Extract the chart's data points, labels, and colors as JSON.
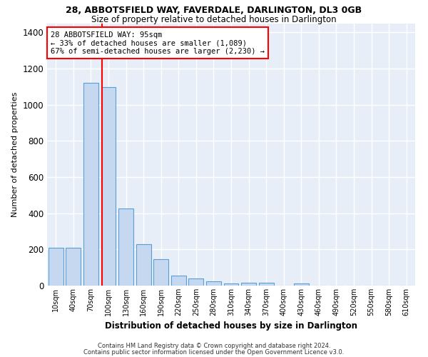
{
  "title1": "28, ABBOTSFIELD WAY, FAVERDALE, DARLINGTON, DL3 0GB",
  "title2": "Size of property relative to detached houses in Darlington",
  "xlabel": "Distribution of detached houses by size in Darlington",
  "ylabel": "Number of detached properties",
  "footnote1": "Contains HM Land Registry data © Crown copyright and database right 2024.",
  "footnote2": "Contains public sector information licensed under the Open Government Licence v3.0.",
  "bar_color": "#c5d8f0",
  "bar_edge_color": "#5a9fd4",
  "annotation_box_text": "28 ABBOTSFIELD WAY: 95sqm\n← 33% of detached houses are smaller (1,089)\n67% of semi-detached houses are larger (2,230) →",
  "vline_color": "#ff0000",
  "categories": [
    "10sqm",
    "40sqm",
    "70sqm",
    "100sqm",
    "130sqm",
    "160sqm",
    "190sqm",
    "220sqm",
    "250sqm",
    "280sqm",
    "310sqm",
    "340sqm",
    "370sqm",
    "400sqm",
    "430sqm",
    "460sqm",
    "490sqm",
    "520sqm",
    "550sqm",
    "580sqm",
    "610sqm"
  ],
  "values": [
    210,
    210,
    1120,
    1095,
    425,
    230,
    145,
    55,
    38,
    25,
    10,
    15,
    17,
    0,
    12,
    0,
    0,
    0,
    0,
    0,
    0
  ],
  "ylim": [
    0,
    1450
  ],
  "yticks": [
    0,
    200,
    400,
    600,
    800,
    1000,
    1200,
    1400
  ],
  "bg_color": "#e8eef8",
  "grid_color": "#ffffff",
  "fig_bg": "#ffffff",
  "bar_width": 0.85
}
